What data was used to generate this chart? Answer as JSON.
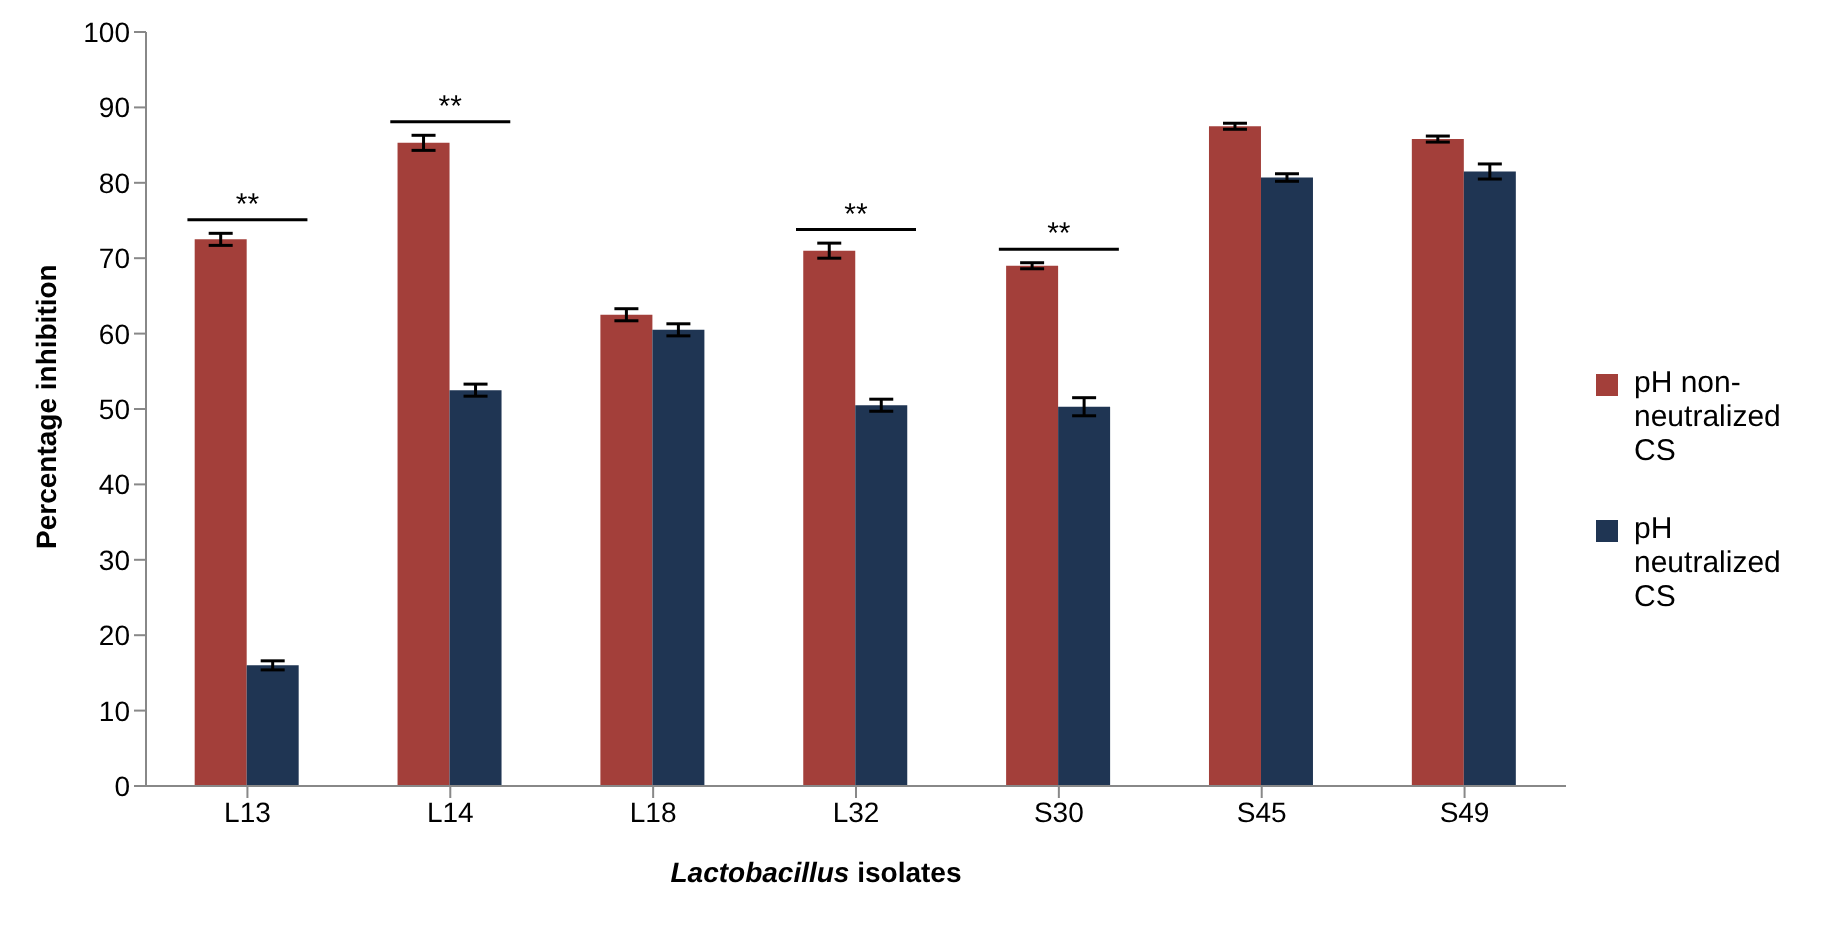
{
  "chart_data": {
    "type": "bar",
    "xlabel": "Lactobacillus isolates",
    "ylabel": "Percentage inhibition",
    "categories": [
      "L13",
      "L14",
      "L18",
      "L32",
      "S30",
      "S45",
      "S49"
    ],
    "series": [
      {
        "name": "pH non-neutralized CS",
        "color": "#a33f3a",
        "values": [
          72.5,
          85.3,
          62.5,
          71,
          69,
          87.5,
          85.8
        ],
        "errors": [
          0.8,
          1,
          0.8,
          1,
          0.4,
          0.4,
          0.4
        ]
      },
      {
        "name": "pH neutralized CS",
        "color": "#1f3553",
        "values": [
          16,
          52.5,
          60.5,
          50.5,
          50.3,
          80.7,
          81.5
        ],
        "errors": [
          0.6,
          0.8,
          0.8,
          0.8,
          1.2,
          0.5,
          1
        ]
      }
    ],
    "ylim": [
      0,
      100
    ],
    "yticks": [
      0,
      10,
      20,
      30,
      40,
      50,
      60,
      70,
      80,
      90,
      100
    ],
    "grid": false,
    "legend": "right",
    "annotations": [
      "**",
      "**",
      "**",
      "**"
    ]
  }
}
